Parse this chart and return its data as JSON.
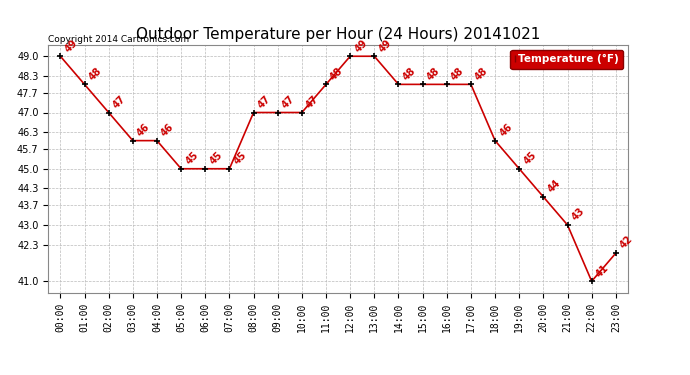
{
  "title": "Outdoor Temperature per Hour (24 Hours) 20141021",
  "hours": [
    "00:00",
    "01:00",
    "02:00",
    "03:00",
    "04:00",
    "05:00",
    "06:00",
    "07:00",
    "08:00",
    "09:00",
    "10:00",
    "11:00",
    "12:00",
    "13:00",
    "14:00",
    "15:00",
    "16:00",
    "17:00",
    "18:00",
    "19:00",
    "20:00",
    "21:00",
    "22:00",
    "23:00"
  ],
  "temperatures": [
    49,
    48,
    47,
    46,
    46,
    45,
    45,
    45,
    47,
    47,
    47,
    48,
    49,
    49,
    48,
    48,
    48,
    48,
    46,
    45,
    44,
    43,
    41,
    42
  ],
  "line_color": "#cc0000",
  "marker_color": "#000000",
  "label_color": "#cc0000",
  "legend_text": "Temperature (°F)",
  "legend_bg": "#cc0000",
  "legend_fg": "#ffffff",
  "copyright_text": "Copyright 2014 Cartronics.com",
  "ylim_min": 41.0,
  "ylim_max": 49.0,
  "yticks": [
    41.0,
    42.3,
    43.0,
    43.7,
    44.3,
    45.0,
    45.7,
    46.3,
    47.0,
    47.7,
    48.3,
    49.0
  ],
  "background_color": "#ffffff",
  "grid_color": "#bbbbbb",
  "title_fontsize": 11,
  "label_fontsize": 7,
  "tick_fontsize": 7,
  "copyright_fontsize": 6.5
}
